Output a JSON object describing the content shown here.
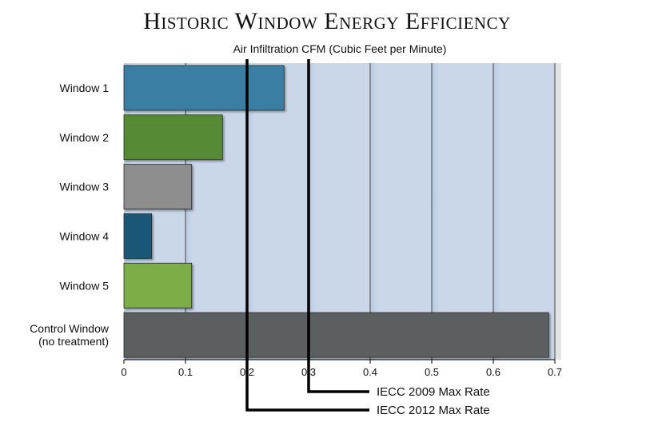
{
  "chart_data": {
    "type": "bar",
    "orientation": "horizontal",
    "title": "Historic Window Energy Efficiency",
    "subtitle": "Air Infiltration CFM (Cubic Feet per Minute)",
    "categories": [
      [
        "Window 1"
      ],
      [
        "Window 2"
      ],
      [
        "Window 3"
      ],
      [
        "Window 4"
      ],
      [
        "Window 5"
      ],
      [
        "Control Window",
        "(no treatment)"
      ]
    ],
    "values": [
      0.26,
      0.16,
      0.11,
      0.045,
      0.11,
      0.69
    ],
    "colors": [
      "#3a7ea3",
      "#568a34",
      "#8e8e8e",
      "#1a5677",
      "#7cad4a",
      "#5b5f5e"
    ],
    "xlim": [
      0,
      0.7
    ],
    "xticks": [
      0,
      0.1,
      0.2,
      0.3,
      0.4,
      0.5,
      0.6,
      0.7
    ],
    "xtick_labels": [
      "0",
      "0.1",
      "0.2",
      "0.3",
      "0.4",
      "0.5",
      "0.6",
      "0.7"
    ],
    "grid": true,
    "reference_lines": [
      {
        "name": "IECC 2009 Max Rate",
        "value": 0.3
      },
      {
        "name": "IECC 2012 Max Rate",
        "value": 0.2
      }
    ],
    "plot_background": "#c8d6e8"
  }
}
